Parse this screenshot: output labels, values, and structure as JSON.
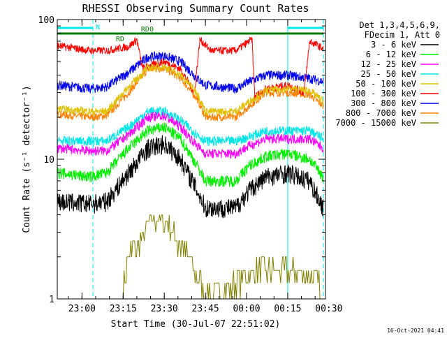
{
  "chart_data": {
    "type": "line",
    "title": "RHESSI Observing Summary Count Rates",
    "xlabel": "Start Time (30-Jul-07 22:51:02)",
    "ylabel": "Count Rate (s⁻¹ detector⁻¹)",
    "x_unit": "minutes since 22:51:02",
    "x_range": [
      0,
      97
    ],
    "y_scale": "log",
    "ylim": [
      1,
      100
    ],
    "x_ticks": [
      {
        "label": "23:00",
        "x": 9
      },
      {
        "label": "23:15",
        "x": 24
      },
      {
        "label": "23:30",
        "x": 39
      },
      {
        "label": "23:45",
        "x": 54
      },
      {
        "label": "00:00",
        "x": 69
      },
      {
        "label": "00:15",
        "x": 84
      },
      {
        "label": "00:30",
        "x": 99
      }
    ],
    "y_ticks": [
      {
        "label": "1",
        "y": 1
      },
      {
        "label": "10",
        "y": 10
      },
      {
        "label": "100",
        "y": 100
      }
    ],
    "legend": {
      "placement": "right",
      "header": [
        "Det 1,3,4,5,6,9,",
        "FDecim 1, Att 0"
      ]
    },
    "annotations": [
      {
        "label": "N",
        "x1": 0,
        "x2": 13,
        "color": "#00e5e5"
      },
      {
        "label": "",
        "x1": 84,
        "x2": 97,
        "color": "#00e5e5"
      },
      {
        "label": "RD",
        "x1": 0,
        "x2": 29,
        "color": "#007a00"
      },
      {
        "label": "RD0",
        "x1": 29,
        "x2": 50,
        "color": "#007a00"
      },
      {
        "label": "",
        "x1": 50,
        "x2": 97,
        "color": "#007a00"
      }
    ],
    "vlines": [
      {
        "x": 13,
        "style": "dashed",
        "color": "#00e5e5"
      },
      {
        "x": 84,
        "style": "solid",
        "color": "#00e5e5"
      },
      {
        "x": 97,
        "style": "dashed",
        "color": "#00e5e5"
      }
    ],
    "series": [
      {
        "name": "3 - 6 keV",
        "color": "#000000",
        "noise": 0.1,
        "points": [
          [
            0,
            5
          ],
          [
            12,
            4.8
          ],
          [
            18,
            5
          ],
          [
            26,
            8
          ],
          [
            33,
            12
          ],
          [
            39,
            13
          ],
          [
            45,
            10
          ],
          [
            51,
            6
          ],
          [
            54,
            4.5
          ],
          [
            65,
            4.5
          ],
          [
            70,
            6
          ],
          [
            76,
            7.5
          ],
          [
            84,
            8
          ],
          [
            92,
            7
          ],
          [
            97,
            4.5
          ]
        ]
      },
      {
        "name": "6 - 12 keV",
        "color": "#00ee00",
        "noise": 0.06,
        "points": [
          [
            0,
            8
          ],
          [
            12,
            7.5
          ],
          [
            18,
            8
          ],
          [
            26,
            12
          ],
          [
            33,
            16
          ],
          [
            39,
            17
          ],
          [
            45,
            14
          ],
          [
            51,
            9
          ],
          [
            54,
            7
          ],
          [
            65,
            7
          ],
          [
            70,
            9
          ],
          [
            76,
            10.5
          ],
          [
            84,
            11
          ],
          [
            92,
            10
          ],
          [
            97,
            7.5
          ]
        ]
      },
      {
        "name": "12 - 25 keV",
        "color": "#ff00ff",
        "noise": 0.05,
        "points": [
          [
            0,
            12
          ],
          [
            12,
            11.5
          ],
          [
            18,
            11.5
          ],
          [
            26,
            15
          ],
          [
            33,
            20
          ],
          [
            39,
            20.5
          ],
          [
            45,
            17
          ],
          [
            51,
            12.5
          ],
          [
            54,
            11
          ],
          [
            65,
            11
          ],
          [
            70,
            12.5
          ],
          [
            76,
            14
          ],
          [
            84,
            14
          ],
          [
            92,
            14
          ],
          [
            97,
            12
          ]
        ]
      },
      {
        "name": "25 - 50 keV",
        "color": "#00e5e5",
        "noise": 0.05,
        "points": [
          [
            0,
            13.5
          ],
          [
            12,
            13.5
          ],
          [
            18,
            13.5
          ],
          [
            26,
            17
          ],
          [
            33,
            22
          ],
          [
            39,
            22
          ],
          [
            45,
            19
          ],
          [
            51,
            15
          ],
          [
            54,
            13.5
          ],
          [
            65,
            13.5
          ],
          [
            70,
            14.5
          ],
          [
            76,
            16
          ],
          [
            84,
            16
          ],
          [
            92,
            16
          ],
          [
            97,
            14
          ]
        ]
      },
      {
        "name": "50 - 100 keV",
        "color": "#e0c000",
        "noise": 0.04,
        "points": [
          [
            0,
            23
          ],
          [
            12,
            22
          ],
          [
            18,
            22
          ],
          [
            26,
            33
          ],
          [
            33,
            45
          ],
          [
            39,
            46
          ],
          [
            45,
            40
          ],
          [
            51,
            30
          ],
          [
            54,
            22
          ],
          [
            65,
            22
          ],
          [
            70,
            26
          ],
          [
            76,
            31
          ],
          [
            84,
            32
          ],
          [
            92,
            31
          ],
          [
            97,
            26
          ]
        ]
      },
      {
        "name": "100 - 300 keV",
        "color": "#ff0000",
        "noise": 0.04,
        "points": [
          [
            0,
            65
          ],
          [
            12,
            60
          ],
          [
            18,
            60
          ],
          [
            26,
            64
          ],
          [
            29,
            72
          ],
          [
            31,
            45
          ],
          [
            39,
            50
          ],
          [
            45,
            44
          ],
          [
            50,
            30
          ],
          [
            52,
            72
          ],
          [
            56,
            60
          ],
          [
            65,
            60
          ],
          [
            71,
            72
          ],
          [
            72,
            28
          ],
          [
            76,
            32
          ],
          [
            84,
            34
          ],
          [
            90,
            30
          ],
          [
            92,
            70
          ],
          [
            97,
            62
          ]
        ]
      },
      {
        "name": "300 - 800 keV",
        "color": "#0000ee",
        "noise": 0.05,
        "points": [
          [
            0,
            34
          ],
          [
            12,
            32
          ],
          [
            18,
            33
          ],
          [
            26,
            42
          ],
          [
            33,
            54
          ],
          [
            39,
            55
          ],
          [
            45,
            50
          ],
          [
            51,
            38
          ],
          [
            54,
            34
          ],
          [
            65,
            32
          ],
          [
            70,
            36
          ],
          [
            76,
            40
          ],
          [
            84,
            40
          ],
          [
            92,
            38
          ],
          [
            97,
            36
          ]
        ]
      },
      {
        "name": "800 - 7000 keV",
        "color": "#ff8000",
        "noise": 0.04,
        "points": [
          [
            0,
            21
          ],
          [
            12,
            20
          ],
          [
            18,
            20.5
          ],
          [
            26,
            30
          ],
          [
            33,
            44
          ],
          [
            39,
            45
          ],
          [
            45,
            38
          ],
          [
            51,
            27
          ],
          [
            54,
            20
          ],
          [
            65,
            20
          ],
          [
            70,
            24
          ],
          [
            76,
            30
          ],
          [
            84,
            30
          ],
          [
            92,
            29
          ],
          [
            97,
            24
          ]
        ]
      },
      {
        "name": "7000 - 15000 keV",
        "color": "#808000",
        "noise": 0.0,
        "points": [
          [
            24,
            1.25
          ],
          [
            26,
            2
          ],
          [
            30,
            2.6
          ],
          [
            35,
            3.6
          ],
          [
            40,
            3.6
          ],
          [
            44,
            2.5
          ],
          [
            48,
            2
          ],
          [
            52,
            1.3
          ],
          [
            55,
            1.1
          ],
          [
            60,
            1.1
          ],
          [
            70,
            1.6
          ],
          [
            76,
            1.6
          ],
          [
            84,
            1.6
          ],
          [
            92,
            1.5
          ],
          [
            96,
            1.2
          ]
        ]
      }
    ]
  },
  "footer": {
    "timestamp": "16-Oct-2021 04:41"
  }
}
